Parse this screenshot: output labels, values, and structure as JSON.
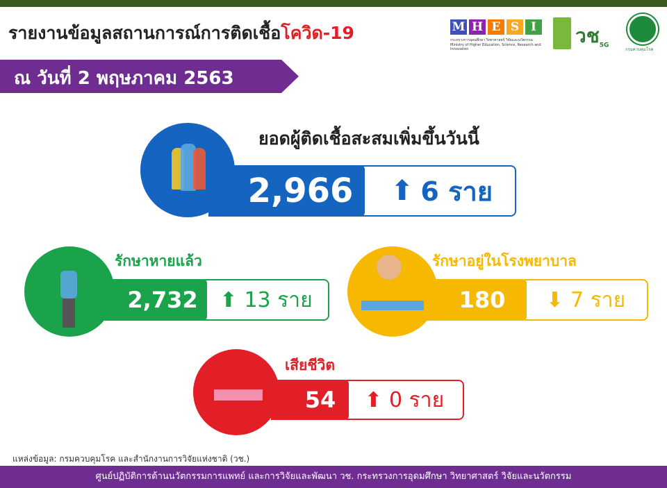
{
  "header": {
    "title_main": "รายงานข้อมูลสถานการณ์การติดเชื้อ",
    "title_highlight": "โควิด-19",
    "date": "ณ วันที่ 2 พฤษภาคม 2563"
  },
  "logos": {
    "mhesi": [
      "M",
      "H",
      "E",
      "S",
      "I"
    ],
    "mhesi_sub": "กระทรวงการอุดมศึกษา วิทยาศาสตร์ วิจัยและนวัตกรรม Ministry of Higher Education, Science, Research and Innovation",
    "nrct": "วช. NRCT",
    "fiveg": "5G",
    "ddc": "กรมควบคุมโรค"
  },
  "cumulative": {
    "label": "ยอดผู้ติดเชื้อสะสมเพิ่มขึ้นวันนี้",
    "total": "2,966",
    "change": "6 ราย",
    "direction": "up",
    "color": "#1565c0"
  },
  "recovered": {
    "label": "รักษาหายแล้ว",
    "total": "2,732",
    "change": "13 ราย",
    "direction": "up",
    "color": "#1aa34a"
  },
  "hospitalized": {
    "label": "รักษาอยู่ในโรงพยาบาล",
    "total": "180",
    "change": "7 ราย",
    "direction": "down",
    "color": "#f6b800"
  },
  "deaths": {
    "label": "เสียชีวิต",
    "total": "54",
    "change": "0 ราย",
    "direction": "up",
    "color": "#e21f26"
  },
  "source": "แหล่งข้อมูล: กรมควบคุมโรค และสำนักงานการวิจัยแห่งชาติ (วช.)",
  "footer": "ศูนย์ปฏิบัติการด้านนวัตกรรมการแพทย์ และการวิจัยและพัฒนา วช. กระทรวงการอุดมศึกษา วิทยาศาสตร์ วิจัยและนวัตกรรม"
}
